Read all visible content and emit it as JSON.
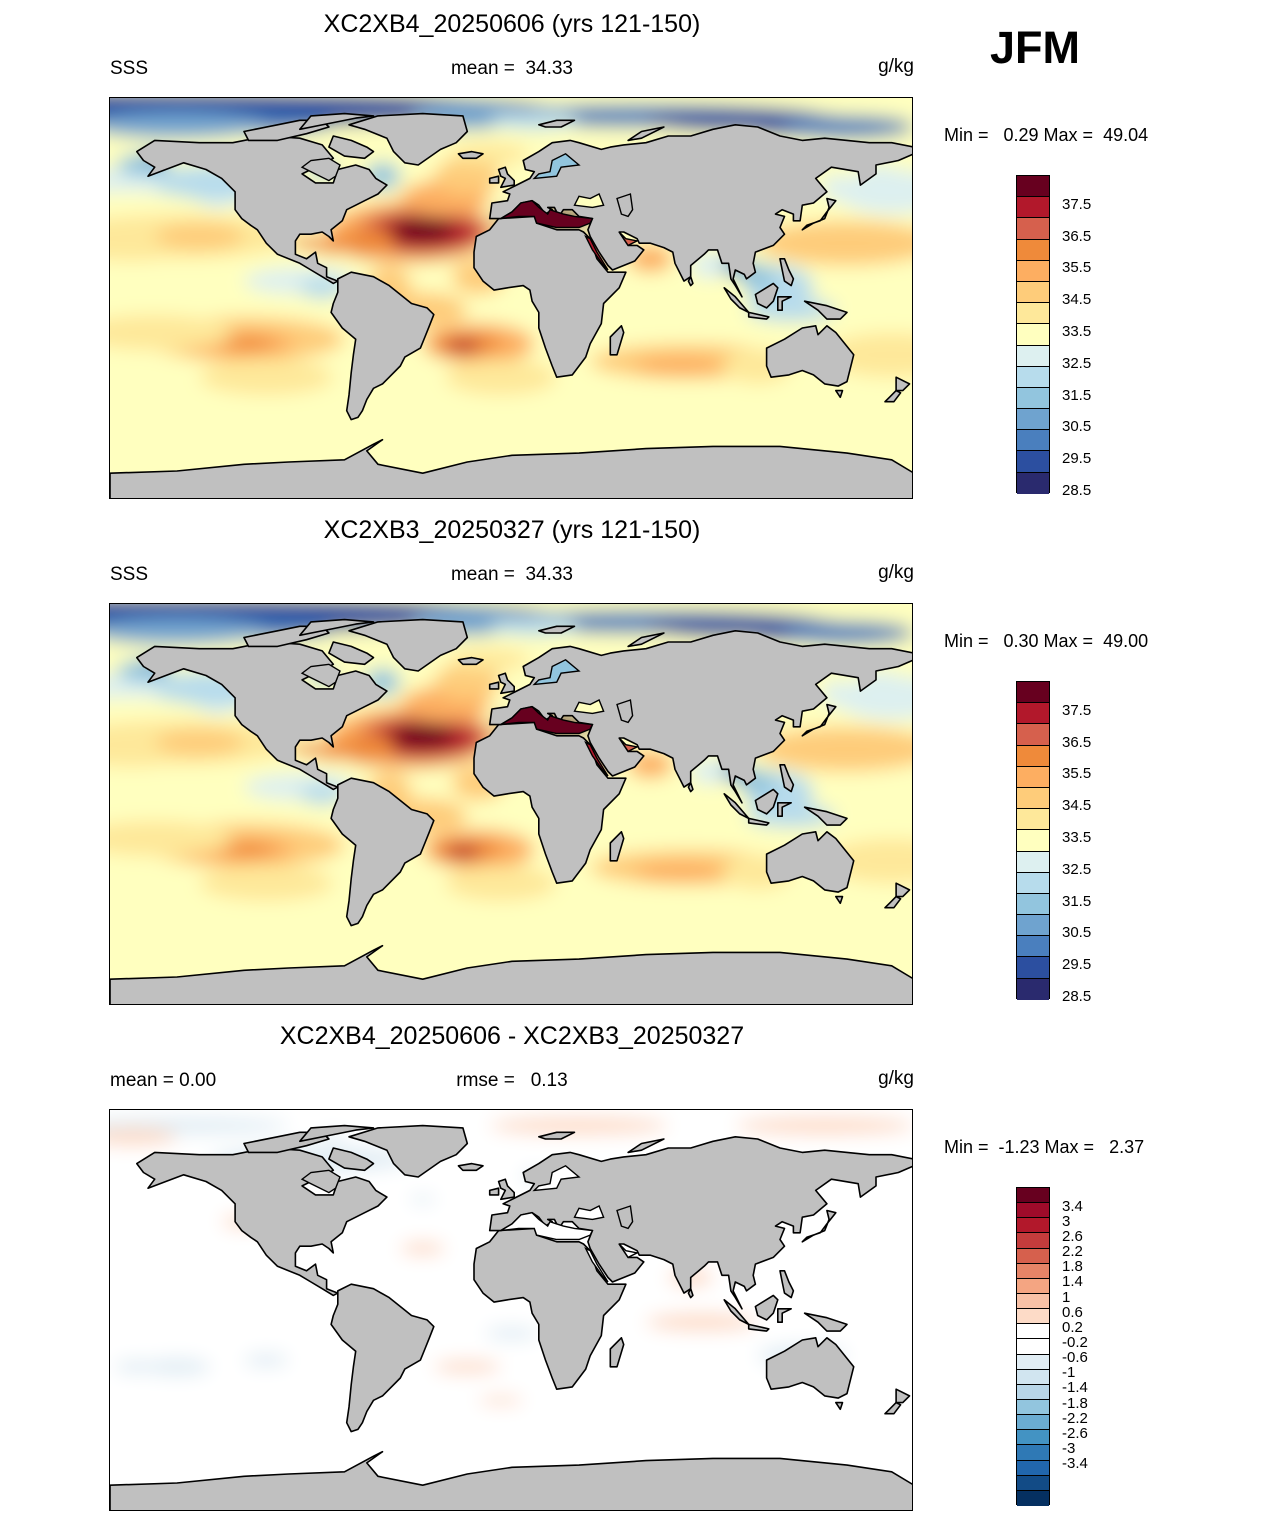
{
  "season_label": "JFM",
  "panels": [
    {
      "id": "p1",
      "title": "XC2XB4_20250606 (yrs 121-150)",
      "left_label": "SSS",
      "center_label": "mean =  34.33",
      "units": "g/kg",
      "minmax": "Min =   0.29 Max =  49.04",
      "palette": "sss",
      "pattern": "sss"
    },
    {
      "id": "p2",
      "title": "XC2XB3_20250327 (yrs 121-150)",
      "left_label": "SSS",
      "center_label": "mean =  34.33",
      "units": "g/kg",
      "minmax": "Min =   0.30 Max =  49.00",
      "palette": "sss",
      "pattern": "sss"
    },
    {
      "id": "p3",
      "title": "XC2XB4_20250606 - XC2XB3_20250327",
      "left_label": "mean =   0.00",
      "center_label": "rmse =   0.13",
      "units": "g/kg",
      "minmax": "Min =  -1.23 Max =   2.37",
      "palette": "diff",
      "pattern": "diff"
    }
  ],
  "colorbars": {
    "sss": {
      "colors": [
        "#67001f",
        "#b2182b",
        "#d6604d",
        "#ef8a3a",
        "#fdae61",
        "#fecc7a",
        "#fee89a",
        "#ffffbf",
        "#ddf0f0",
        "#b7dcec",
        "#92c5de",
        "#6fa3cf",
        "#4a7fbe",
        "#2c4fa0",
        "#2a2a6e"
      ],
      "labels": [
        "37.5",
        "36.5",
        "35.5",
        "34.5",
        "33.5",
        "32.5",
        "31.5",
        "30.5",
        "29.5",
        "28.5"
      ],
      "label_slots": [
        1,
        3,
        5,
        7,
        9,
        11,
        13,
        15,
        17,
        19
      ]
    },
    "diff": {
      "colors": [
        "#67001f",
        "#9e0b2a",
        "#b2182b",
        "#c43c3c",
        "#d6604d",
        "#e68467",
        "#f4a582",
        "#f8c1a6",
        "#fddbc7",
        "#ffffff",
        "#ffffff",
        "#e1edf4",
        "#d1e5f0",
        "#b8d6e8",
        "#92c5de",
        "#6bacd1",
        "#4393c3",
        "#2f79b5",
        "#2166ac",
        "#124b86",
        "#053061"
      ],
      "labels": [
        "3.4",
        "3",
        "2.6",
        "2.2",
        "1.8",
        "1.4",
        "1",
        "0.6",
        "0.2",
        "-0.2",
        "-0.6",
        "-1",
        "-1.4",
        "-1.8",
        "-2.2",
        "-2.6",
        "-3",
        "-3.4"
      ]
    }
  }
}
